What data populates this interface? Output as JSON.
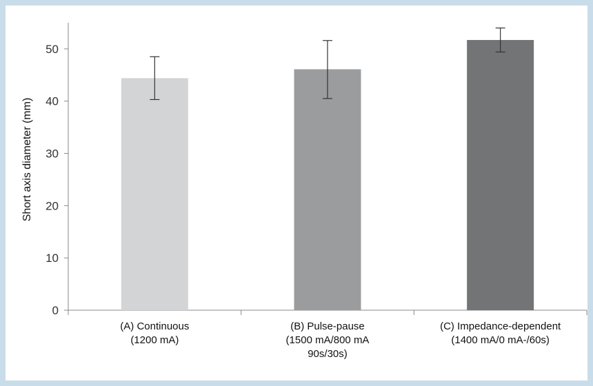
{
  "chart_data": {
    "type": "bar",
    "title": "",
    "xlabel": "",
    "ylabel": "Short axis diameter (mm)",
    "ylim": [
      0,
      55
    ],
    "yticks": [
      "0",
      "10",
      "20",
      "30",
      "40",
      "50"
    ],
    "grid": false,
    "legend": "none",
    "categories": [
      [
        "(A) Continuous",
        "(1200 mA)"
      ],
      [
        "(B) Pulse-pause",
        "(1500 mA/800 mA",
        "90s/30s)"
      ],
      [
        "(C) Impedance-dependent",
        "(1400 mA/0 mA-/60s)"
      ]
    ],
    "values": [
      44.4,
      46.1,
      51.7
    ],
    "error_low": [
      40.3,
      40.5,
      49.4
    ],
    "error_high": [
      48.5,
      51.6,
      54.0
    ],
    "colors": [
      "#d2d4d6",
      "#9a9c9e",
      "#727476"
    ]
  }
}
